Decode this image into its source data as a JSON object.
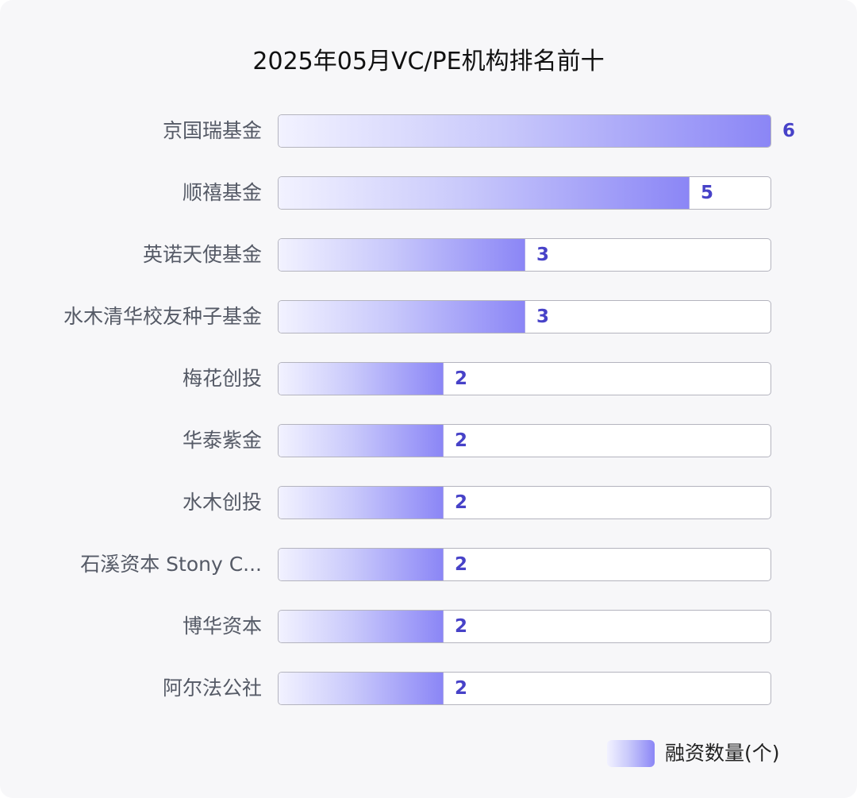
{
  "chart_data": {
    "type": "bar",
    "orientation": "horizontal",
    "title": "2025年05月VC/PE机构排名前十",
    "categories": [
      "京国瑞基金",
      "顺禧基金",
      "英诺天使基金",
      "水木清华校友种子基金",
      "梅花创投",
      "华泰紫金",
      "水木创投",
      "石溪资本 Stony C...",
      "博华资本",
      "阿尔法公社"
    ],
    "series": [
      {
        "name": "融资数量(个)",
        "values": [
          6,
          5,
          3,
          3,
          2,
          2,
          2,
          2,
          2,
          2
        ]
      }
    ],
    "xlim": [
      0,
      6
    ],
    "grid": false,
    "legend_position": "bottom-right",
    "colors": {
      "bar_start": "#f2f2ff",
      "bar_end": "#8b86f6",
      "value_label": "#4742c8"
    }
  }
}
